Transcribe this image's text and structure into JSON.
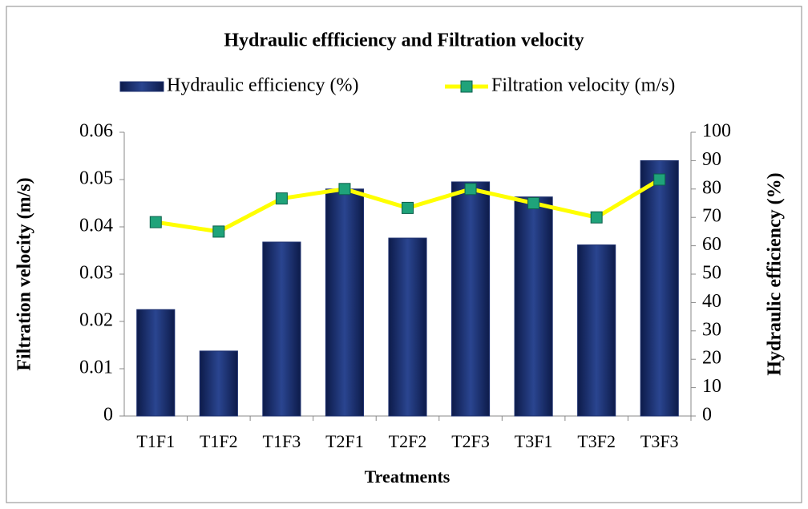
{
  "chart_data": {
    "type": "bar_line",
    "title": "Hydraulic effficiency and Filtration velocity",
    "xlabel": "Treatments",
    "ylabel": "Filtration velocity (m/s)",
    "y2label": "Hydraulic efficiency (%)",
    "categories": [
      "T1F1",
      "T1F2",
      "T1F3",
      "T2F1",
      "T2F2",
      "T2F3",
      "T3F1",
      "T3F2",
      "T3F3"
    ],
    "series": [
      {
        "name": "Hydraulic efficiency (%)",
        "type": "bar",
        "axis": "y2",
        "color": "#1c2f6e",
        "values": [
          37.5,
          22.9,
          61.3,
          80,
          62.7,
          82.5,
          77.2,
          60.3,
          90
        ]
      },
      {
        "name": "Filtration velocity (m/s)",
        "type": "line",
        "axis": "y",
        "color": "#ffff00",
        "marker_color": "#1fa37a",
        "values": [
          0.041,
          0.039,
          0.046,
          0.048,
          0.044,
          0.048,
          0.045,
          0.042,
          0.05
        ]
      }
    ],
    "ylim": [
      0,
      0.06
    ],
    "yticks": [
      0,
      0.01,
      0.02,
      0.03,
      0.04,
      0.05,
      0.06
    ],
    "y2lim": [
      0,
      100
    ],
    "y2ticks": [
      0,
      10,
      20,
      30,
      40,
      50,
      60,
      70,
      80,
      90,
      100
    ]
  }
}
